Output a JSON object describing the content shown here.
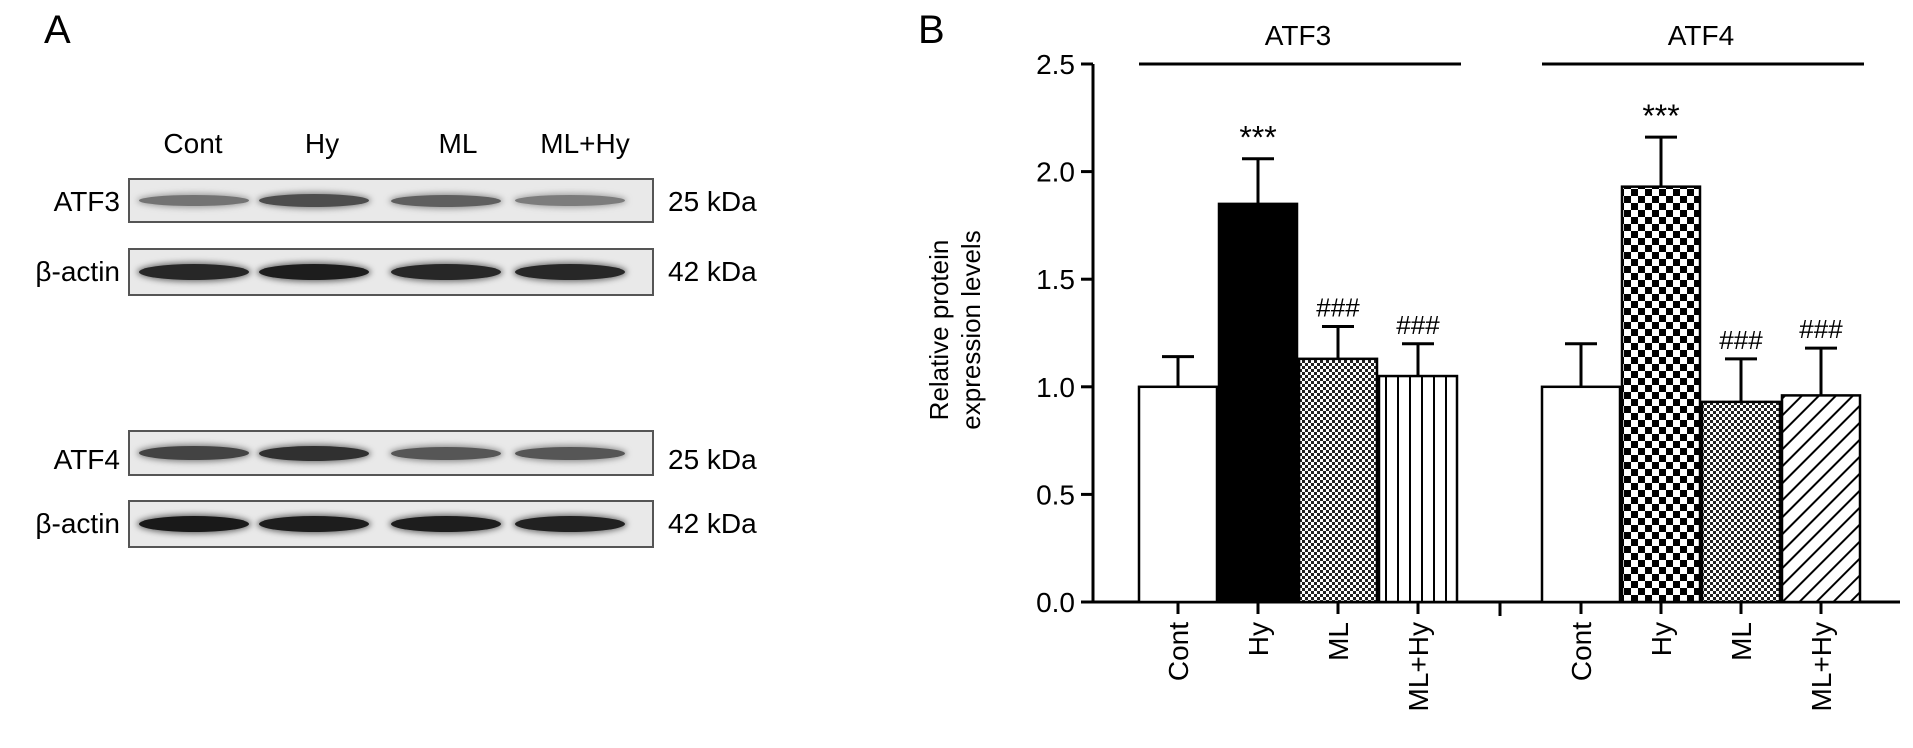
{
  "panel_a": {
    "letter": "A",
    "lanes": [
      "Cont",
      "Hy",
      "ML",
      "ML+Hy"
    ],
    "blots": [
      {
        "protein": "ATF3",
        "size": "25 kDa",
        "intensity": [
          0.45,
          0.65,
          0.55,
          0.4
        ]
      },
      {
        "protein": "β-actin",
        "size": "42 kDa",
        "intensity": [
          0.85,
          0.9,
          0.85,
          0.85
        ]
      },
      {
        "protein": "ATF4",
        "size": "25 kDa",
        "intensity": [
          0.7,
          0.8,
          0.6,
          0.6
        ]
      },
      {
        "protein": "β-actin",
        "size": "42 kDa",
        "intensity": [
          0.92,
          0.9,
          0.9,
          0.88
        ]
      }
    ]
  },
  "panel_b": {
    "letter": "B"
  },
  "chart_data": {
    "type": "bar",
    "ylabel": [
      "Relative protein",
      "expression levels"
    ],
    "ylim": [
      0,
      2.5
    ],
    "yticks": [
      "0.0",
      "0.5",
      "1.0",
      "1.5",
      "2.0",
      "2.5"
    ],
    "groups": [
      {
        "name": "ATF3",
        "categories": [
          "Cont",
          "Hy",
          "ML",
          "ML+Hy"
        ],
        "values": [
          1.0,
          1.85,
          1.13,
          1.05
        ],
        "errors": [
          0.14,
          0.21,
          0.15,
          0.15
        ],
        "annotations": [
          "",
          "***",
          "###",
          "###"
        ],
        "patterns": [
          "white",
          "black",
          "checker-fine",
          "vertical-lines"
        ]
      },
      {
        "name": "ATF4",
        "categories": [
          "Cont",
          "Hy",
          "ML",
          "ML+Hy"
        ],
        "values": [
          1.0,
          1.93,
          0.93,
          0.96
        ],
        "errors": [
          0.2,
          0.23,
          0.2,
          0.22
        ],
        "annotations": [
          "",
          "***",
          "###",
          "###"
        ],
        "patterns": [
          "white",
          "checker-coarse",
          "checker-fine",
          "diagonal-lines"
        ]
      }
    ]
  }
}
